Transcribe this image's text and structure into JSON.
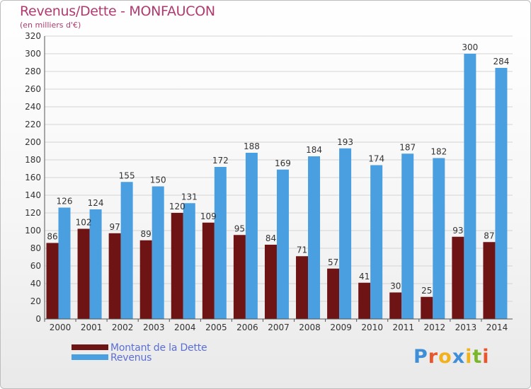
{
  "header": {
    "title": "Revenus/Dette - MONFAUCON",
    "subtitle": "(en milliers d'€)"
  },
  "chart_data": {
    "type": "bar",
    "title": "Revenus/Dette - MONFAUCON",
    "subtitle": "(en milliers d'€)",
    "categories": [
      "2000",
      "2001",
      "2002",
      "2003",
      "2004",
      "2005",
      "2006",
      "2007",
      "2008",
      "2009",
      "2010",
      "2011",
      "2012",
      "2013",
      "2014"
    ],
    "series": [
      {
        "name": "Montant de la Dette",
        "color": "#6e1414",
        "values": [
          86,
          102,
          97,
          89,
          120,
          109,
          95,
          84,
          71,
          57,
          41,
          30,
          25,
          93,
          87
        ]
      },
      {
        "name": "Revenus",
        "color": "#4a9fe0",
        "values": [
          126,
          124,
          155,
          150,
          131,
          172,
          188,
          169,
          184,
          193,
          174,
          187,
          182,
          300,
          284
        ]
      }
    ],
    "ylim": [
      0,
      320
    ],
    "yticks": [
      0,
      20,
      40,
      60,
      80,
      100,
      120,
      140,
      160,
      180,
      200,
      220,
      240,
      260,
      280,
      300,
      320
    ],
    "grid": true,
    "legend": "bottom-left"
  },
  "logo": {
    "letters": [
      "P",
      "r",
      "o",
      "x",
      "i",
      "t",
      "i"
    ],
    "colors": [
      "#3f8fd8",
      "#e8562e",
      "#f2b21c",
      "#3f8fd8",
      "#f2b21c",
      "#7bb62d",
      "#e8562e"
    ]
  }
}
